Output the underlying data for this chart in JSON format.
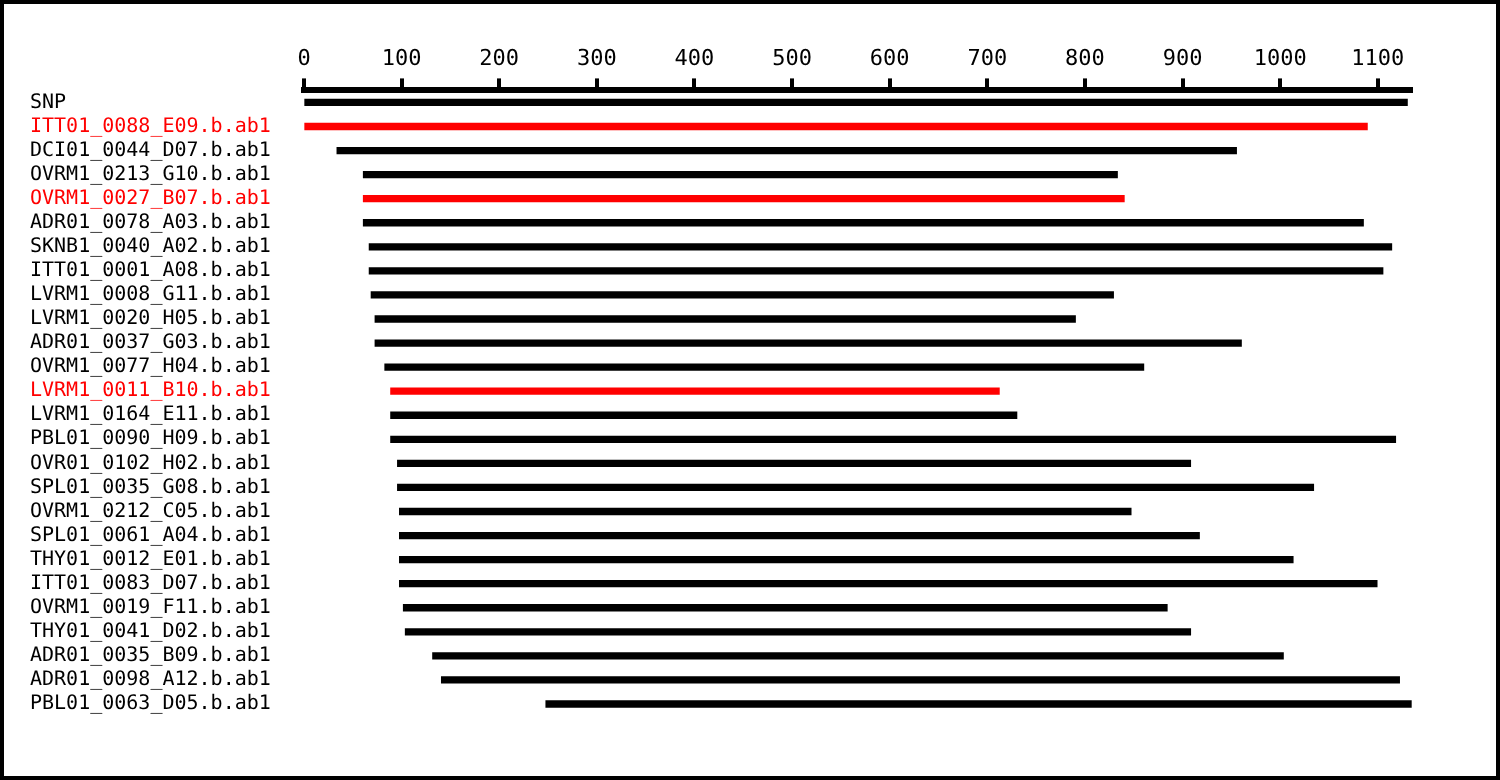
{
  "chart_data": {
    "type": "bar",
    "orientation": "horizontal",
    "categories": [
      "SNP",
      "ITT01_0088_E09.b.ab1",
      "DCI01_0044_D07.b.ab1",
      "OVRM1_0213_G10.b.ab1",
      "OVRM1_0027_B07.b.ab1",
      "ADR01_0078_A03.b.ab1",
      "SKNB1_0040_A02.b.ab1",
      "ITT01_0001_A08.b.ab1",
      "LVRM1_0008_G11.b.ab1",
      "LVRM1_0020_H05.b.ab1",
      "ADR01_0037_G03.b.ab1",
      "OVRM1_0077_H04.b.ab1",
      "LVRM1_0011_B10.b.ab1",
      "LVRM1_0164_E11.b.ab1",
      "PBL01_0090_H09.b.ab1",
      "OVR01_0102_H02.b.ab1",
      "SPL01_0035_G08.b.ab1",
      "OVRM1_0212_C05.b.ab1",
      "SPL01_0061_A04.b.ab1",
      "THY01_0012_E01.b.ab1",
      "ITT01_0083_D07.b.ab1",
      "OVRM1_0019_F11.b.ab1",
      "THY01_0041_D02.b.ab1",
      "ADR01_0035_B09.b.ab1",
      "ADR01_0098_A12.b.ab1",
      "PBL01_0063_D05.b.ab1"
    ],
    "base": [
      0,
      0,
      34,
      61,
      61,
      61,
      67,
      67,
      69,
      73,
      73,
      83,
      89,
      89,
      89,
      96,
      96,
      98,
      98,
      98,
      98,
      102,
      104,
      132,
      141,
      248
    ],
    "values": [
      1130,
      1089,
      921,
      772,
      779,
      1024,
      1047,
      1038,
      760,
      717,
      887,
      777,
      623,
      641,
      1029,
      812,
      938,
      749,
      819,
      915,
      1001,
      782,
      804,
      871,
      981,
      886
    ],
    "colors": [
      "#000000",
      "#ff0000",
      "#000000",
      "#000000",
      "#ff0000",
      "#000000",
      "#000000",
      "#000000",
      "#000000",
      "#000000",
      "#000000",
      "#000000",
      "#ff0000",
      "#000000",
      "#000000",
      "#000000",
      "#000000",
      "#000000",
      "#000000",
      "#000000",
      "#000000",
      "#000000",
      "#000000",
      "#000000",
      "#000000",
      "#000000"
    ],
    "xlim": [
      0,
      1135
    ],
    "xticks": [
      0,
      100,
      200,
      300,
      400,
      500,
      600,
      700,
      800,
      900,
      1000,
      1100
    ]
  }
}
